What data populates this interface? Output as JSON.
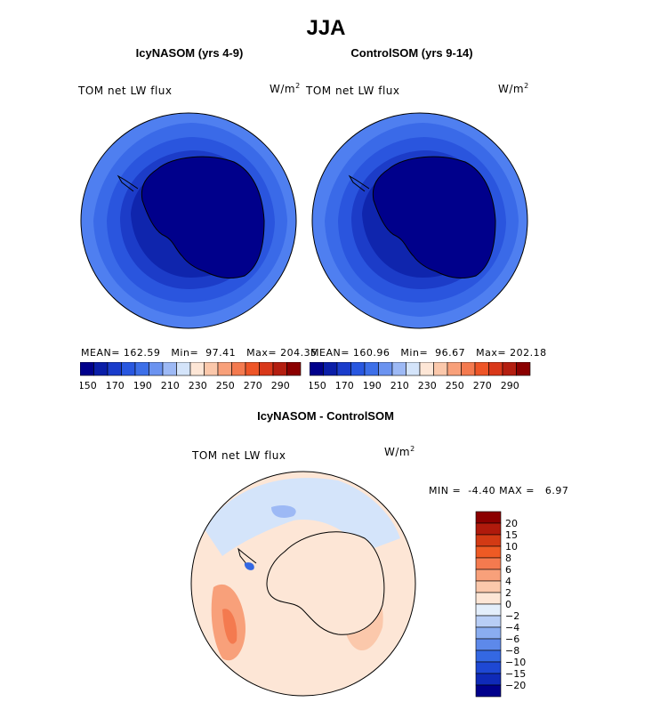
{
  "title": "JJA",
  "panels": [
    {
      "title": "IcyNASOM (yrs 4-9)",
      "variable": "TOM net LW flux",
      "units_base": "W/m",
      "units_exp": "2",
      "stats": {
        "mean_label": "MEAN=",
        "mean": "162.59",
        "min_label": "Min=",
        "min": "97.41",
        "max_label": "Max=",
        "max": "204.35"
      }
    },
    {
      "title": "ControlSOM (yrs 9-14)",
      "variable": "TOM net LW flux",
      "units_base": "W/m",
      "units_exp": "2",
      "stats": {
        "mean_label": "MEAN=",
        "mean": "160.96",
        "min_label": "Min=",
        "min": "96.67",
        "max_label": "Max=",
        "max": "202.18"
      }
    }
  ],
  "diff_panel": {
    "title": "IcyNASOM - ControlSOM",
    "variable": "TOM net LW flux",
    "units_base": "W/m",
    "units_exp": "2",
    "min_label": "MIN =",
    "min": "-4.40",
    "max_label": "MAX =",
    "max": "6.97"
  },
  "colorbar_abs": {
    "colors": [
      "#00008b",
      "#0a1ea8",
      "#1a3ccb",
      "#2857e0",
      "#3d6fe8",
      "#6b93f0",
      "#9db9f5",
      "#d4e4fa",
      "#fde6d6",
      "#fbc8ab",
      "#f8a07a",
      "#f47a4f",
      "#ee5527",
      "#d9381a",
      "#b41e10",
      "#8b0000"
    ],
    "tick_labels": [
      "150",
      "170",
      "190",
      "210",
      "230",
      "250",
      "270",
      "290"
    ]
  },
  "colorbar_diff": {
    "colors": [
      "#8b0000",
      "#b01a0c",
      "#d33a14",
      "#ee5a24",
      "#f47a4f",
      "#f8a07a",
      "#fbc8ab",
      "#fde6d6",
      "#e3eefb",
      "#b8cef6",
      "#8aadf0",
      "#5d89ea",
      "#3468e3",
      "#1e48d4",
      "#0f2ab8",
      "#00008b"
    ],
    "tick_labels": [
      "20",
      "15",
      "10",
      "8",
      "6",
      "4",
      "2",
      "0",
      "−2",
      "−4",
      "−6",
      "−8",
      "−10",
      "−15",
      "−20"
    ]
  },
  "chart_data": [
    {
      "type": "heatmap",
      "title": "IcyNASOM (yrs 4-9)",
      "projection": "south polar stereographic",
      "variable": "TOM net LW flux",
      "units": "W/m^2",
      "color_levels": [
        150,
        160,
        170,
        180,
        190,
        200,
        210,
        220,
        230,
        240,
        250,
        260,
        270,
        280,
        290
      ],
      "mean": 162.59,
      "min": 97.41,
      "max": 204.35
    },
    {
      "type": "heatmap",
      "title": "ControlSOM (yrs 9-14)",
      "projection": "south polar stereographic",
      "variable": "TOM net LW flux",
      "units": "W/m^2",
      "color_levels": [
        150,
        160,
        170,
        180,
        190,
        200,
        210,
        220,
        230,
        240,
        250,
        260,
        270,
        280,
        290
      ],
      "mean": 160.96,
      "min": 96.67,
      "max": 202.18
    },
    {
      "type": "heatmap",
      "title": "IcyNASOM - ControlSOM",
      "projection": "south polar stereographic",
      "variable": "TOM net LW flux",
      "units": "W/m^2",
      "color_levels": [
        -20,
        -15,
        -10,
        -8,
        -6,
        -4,
        -2,
        0,
        2,
        4,
        6,
        8,
        10,
        15,
        20
      ],
      "min": -4.4,
      "max": 6.97
    }
  ]
}
